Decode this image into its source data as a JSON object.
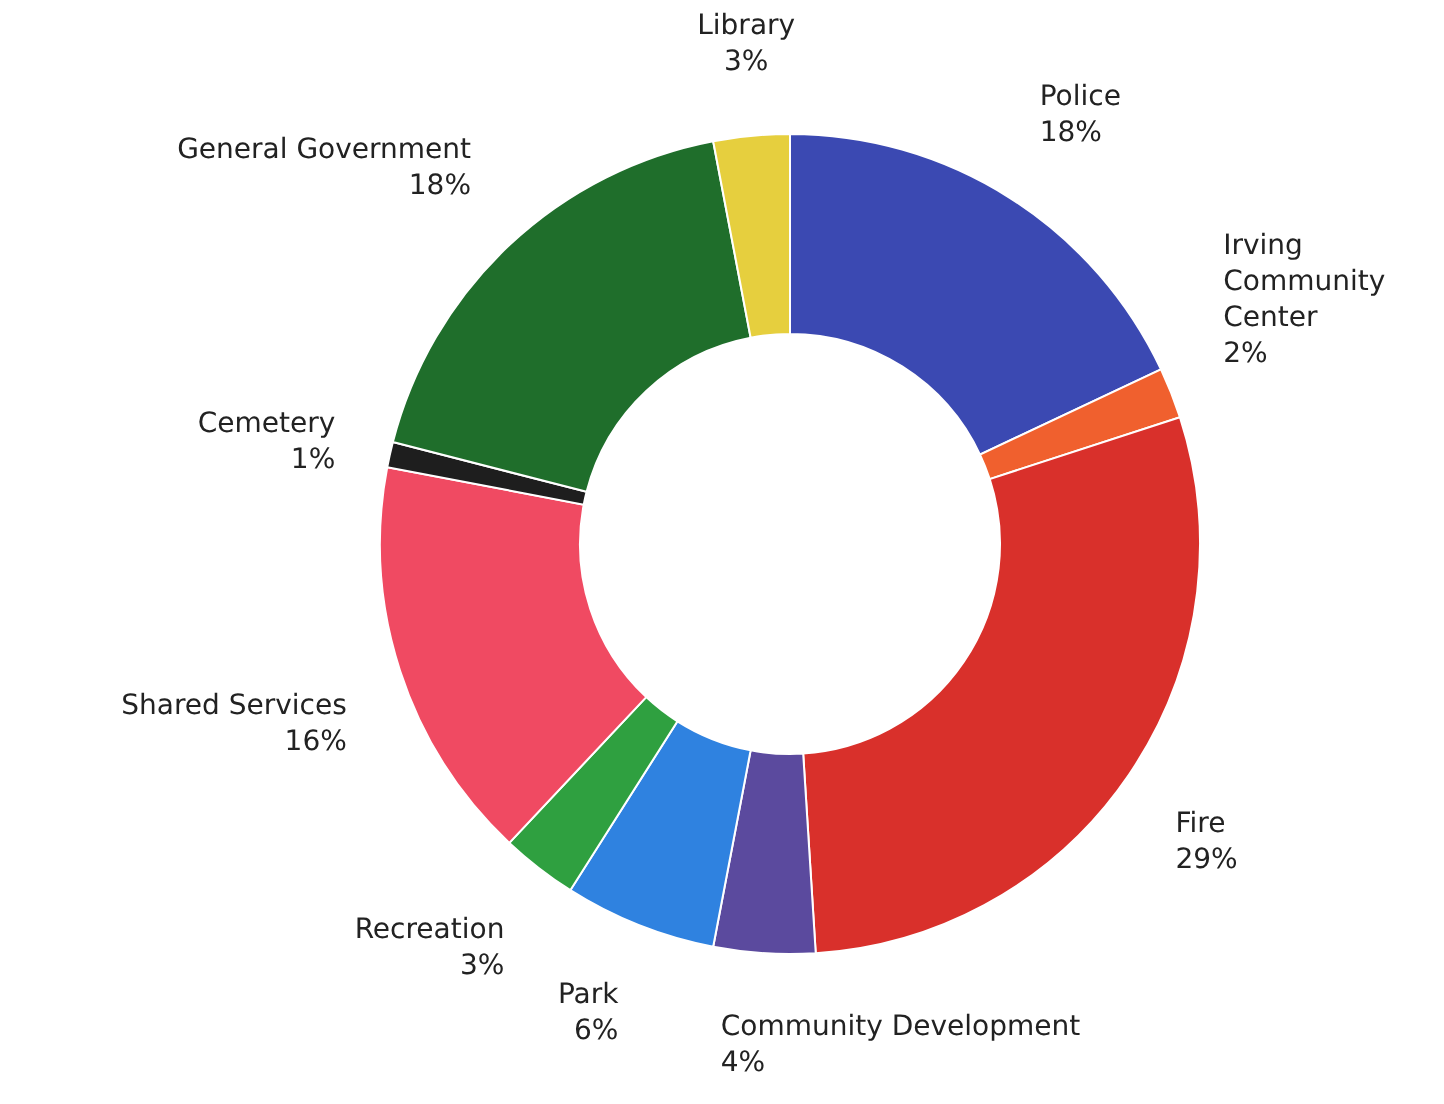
{
  "chart_data": {
    "type": "donut",
    "categories": [
      "Police",
      "Irving Community Center",
      "Fire",
      "Community Development",
      "Park",
      "Recreation",
      "Shared Services",
      "Cemetery",
      "General Government",
      "Library"
    ],
    "values": [
      18,
      2,
      29,
      4,
      6,
      3,
      16,
      1,
      18,
      3
    ],
    "colors": [
      "#3b49b2",
      "#f0602e",
      "#d9302b",
      "#5b4a9e",
      "#2f82e0",
      "#2fa040",
      "#f04a62",
      "#1e1e1e",
      "#1f6e2b",
      "#e6cf3e"
    ],
    "value_labels": [
      "18%",
      "2%",
      "29%",
      "4%",
      "6%",
      "3%",
      "16%",
      "1%",
      "18%",
      "3%"
    ]
  }
}
